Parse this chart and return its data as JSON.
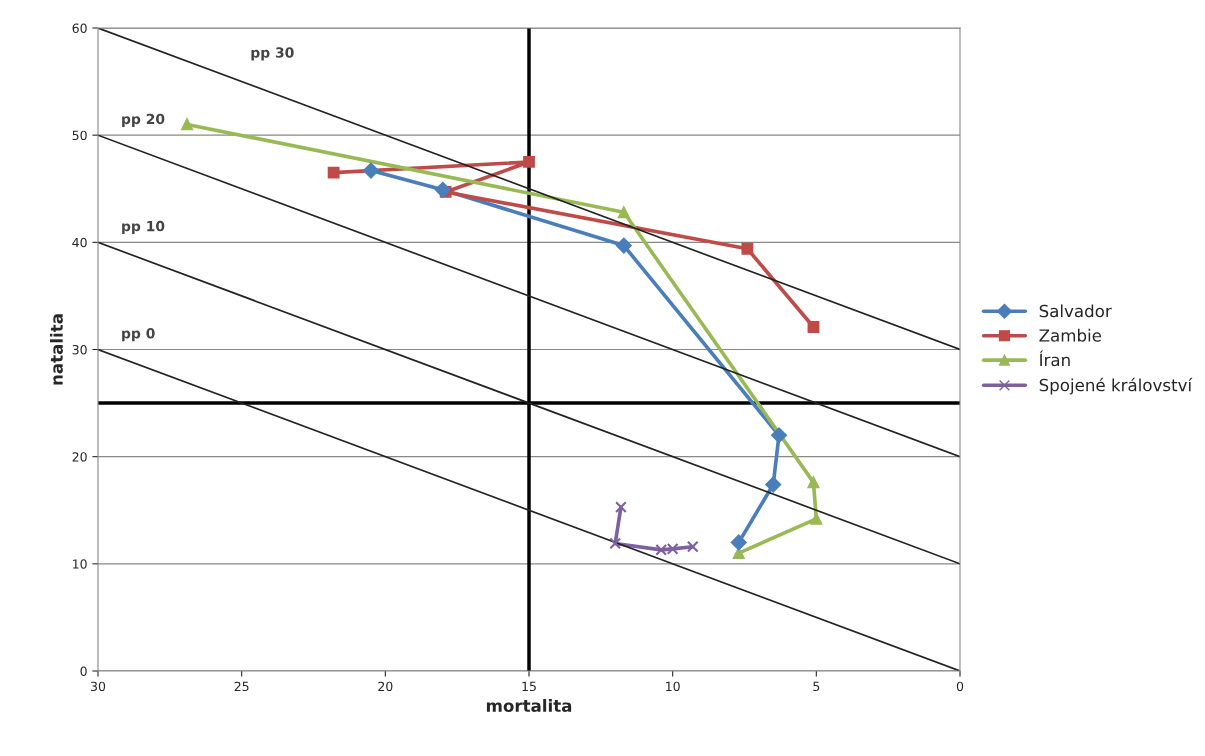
{
  "chart_data": {
    "type": "line",
    "xlabel": "mortalita",
    "ylabel": "natalita",
    "xlim": [
      30,
      0
    ],
    "ylim": [
      0,
      60
    ],
    "xticks": [
      30,
      25,
      20,
      15,
      10,
      5,
      0
    ],
    "yticks": [
      0,
      10,
      20,
      30,
      40,
      50,
      60
    ],
    "grid": "y",
    "legend": "right",
    "line_style": "solid",
    "series": [
      {
        "name": "Salvador",
        "color": "#4a7ebb",
        "marker": "diamond",
        "x": [
          20.5,
          18.0,
          11.7,
          6.3,
          6.5,
          7.7
        ],
        "values": [
          46.7,
          44.9,
          39.7,
          22.0,
          17.4,
          12.0
        ]
      },
      {
        "name": "Zambie",
        "color": "#be4b48",
        "marker": "square",
        "x": [
          21.8,
          15.0,
          17.9,
          7.4,
          5.1
        ],
        "values": [
          46.5,
          47.5,
          44.7,
          39.4,
          32.1
        ]
      },
      {
        "name": "Íran",
        "color": "#98b954",
        "marker": "triangle",
        "x": [
          26.9,
          11.7,
          5.1,
          5.0,
          7.7
        ],
        "values": [
          51.0,
          42.8,
          17.6,
          14.2,
          11.0
        ]
      },
      {
        "name": "Spojené království",
        "color": "#7d60a0",
        "marker": "cross",
        "x": [
          11.8,
          12.0,
          10.4,
          10.0,
          9.3
        ],
        "values": [
          15.3,
          11.9,
          11.3,
          11.4,
          11.6
        ]
      },
      {
        "name": "pp 0",
        "color": "#222222",
        "marker": "none",
        "x": [
          30,
          0
        ],
        "values": [
          30,
          0
        ]
      },
      {
        "name": "pp 10",
        "color": "#222222",
        "marker": "none",
        "x": [
          30,
          0
        ],
        "values": [
          40,
          10
        ]
      },
      {
        "name": "pp 20",
        "color": "#222222",
        "marker": "none",
        "x": [
          30,
          0
        ],
        "values": [
          50,
          20
        ]
      },
      {
        "name": "pp 30",
        "color": "#222222",
        "marker": "none",
        "x": [
          30,
          0
        ],
        "values": [
          60,
          30
        ]
      }
    ],
    "ref_lines": [
      {
        "axis": "x",
        "value": 15,
        "color": "#000000"
      },
      {
        "axis": "y",
        "value": 25,
        "color": "#000000"
      }
    ]
  }
}
